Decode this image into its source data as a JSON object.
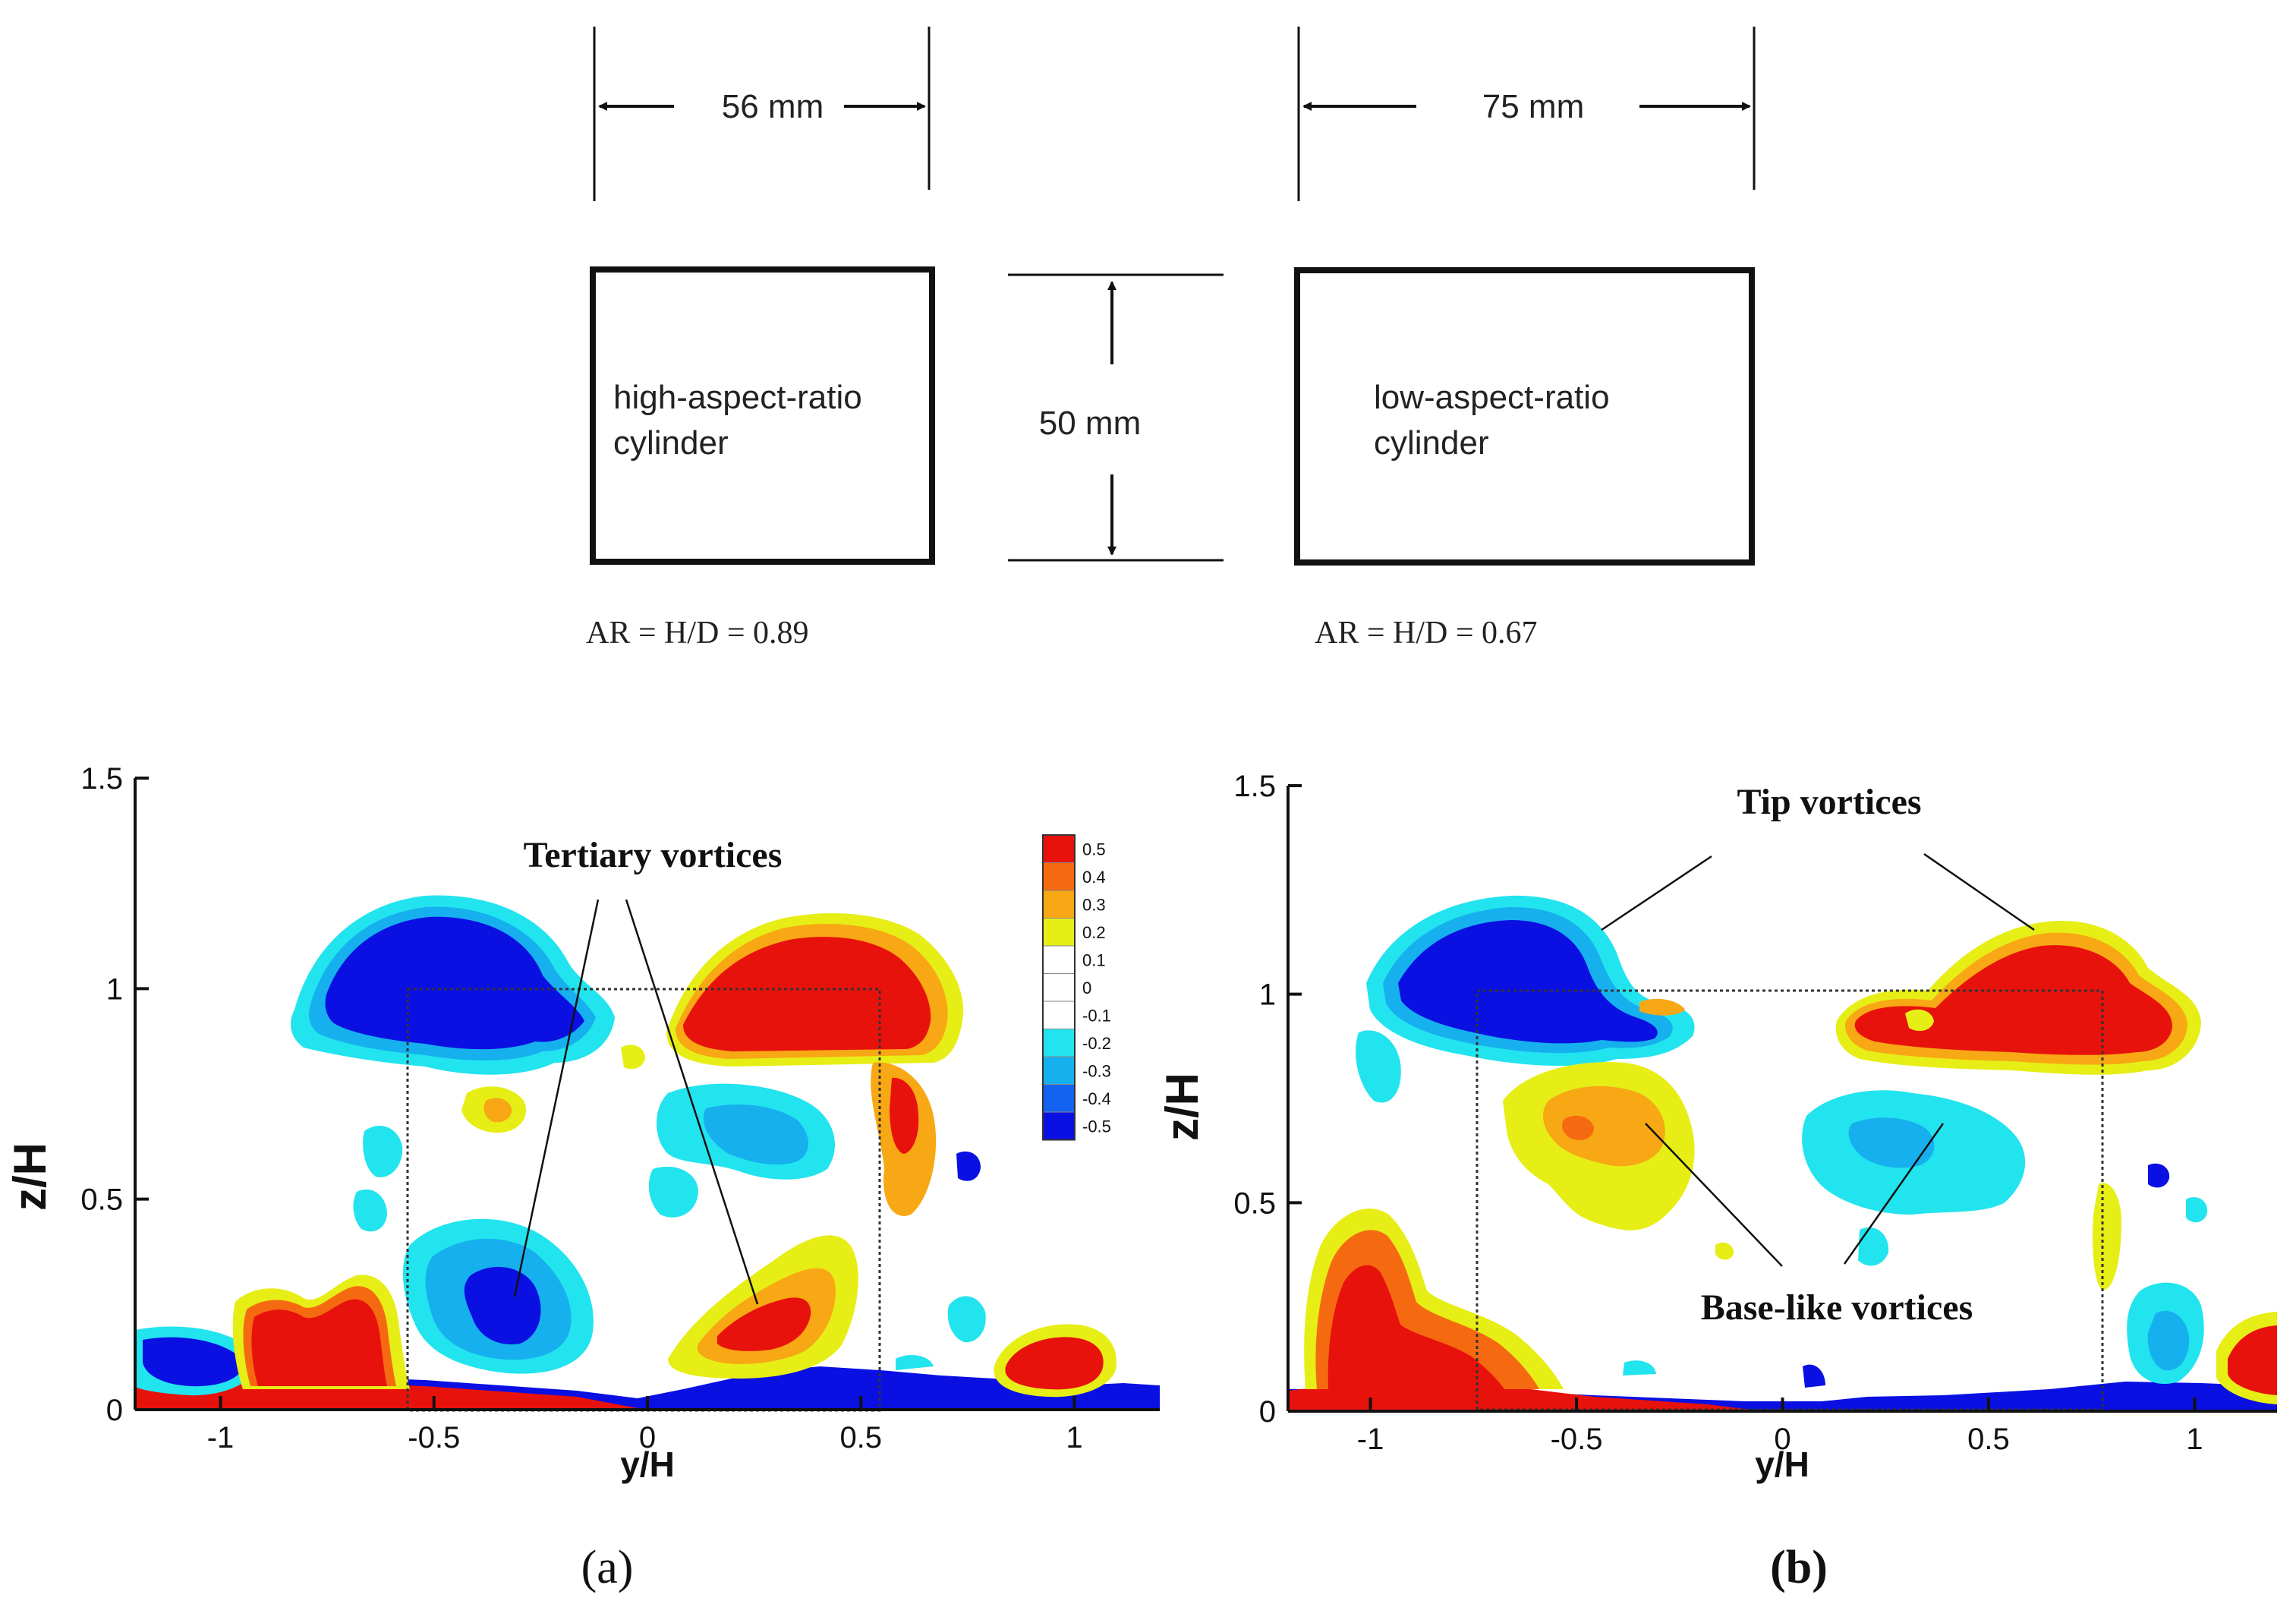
{
  "schematic": {
    "high": {
      "width_label": "56 mm",
      "name_line1": "high-aspect-ratio",
      "name_line2": "cylinder",
      "ar_label": "AR = H/D = 0.89"
    },
    "low": {
      "width_label": "75 mm",
      "name_line1": "low-aspect-ratio",
      "name_line2": "cylinder",
      "ar_label": "AR = H/D = 0.67"
    },
    "height_label": "50 mm"
  },
  "colorbar": {
    "levels": [
      {
        "value": "0.5",
        "color": "#e8120c"
      },
      {
        "value": "0.4",
        "color": "#f56a10"
      },
      {
        "value": "0.3",
        "color": "#f7a814"
      },
      {
        "value": "0.2",
        "color": "#e6ee16"
      },
      {
        "value": "0.1",
        "color": "#ffffff"
      },
      {
        "value": "0",
        "color": "#ffffff"
      },
      {
        "value": "-0.1",
        "color": "#ffffff"
      },
      {
        "value": "-0.2",
        "color": "#22e4ee"
      },
      {
        "value": "-0.3",
        "color": "#16b0ee"
      },
      {
        "value": "-0.4",
        "color": "#1462f0"
      },
      {
        "value": "-0.5",
        "color": "#0a10e2"
      }
    ]
  },
  "chart_data": [
    {
      "panel_label": "(a)",
      "type": "contour",
      "xlabel": "y/H",
      "ylabel": "z/H",
      "xlim": [
        -1.2,
        1.2
      ],
      "ylim": [
        0,
        1.5
      ],
      "x_ticks": [
        "-1",
        "-0.5",
        "0",
        "0.5",
        "1"
      ],
      "y_ticks": [
        "0",
        "0.5",
        "1",
        "1.5"
      ],
      "cylinder_outline": {
        "y_min": -0.56,
        "y_max": 0.56,
        "z_max": 1.0
      },
      "annotations": [
        "Tertiary vortices"
      ]
    },
    {
      "panel_label": "(b)",
      "type": "contour",
      "xlabel": "y/H",
      "ylabel": "z/H",
      "xlim": [
        -1.2,
        1.2
      ],
      "ylim": [
        0,
        1.5
      ],
      "x_ticks": [
        "-1",
        "-0.5",
        "0",
        "0.5",
        "1"
      ],
      "y_ticks": [
        "0",
        "0.5",
        "1",
        "1.5"
      ],
      "cylinder_outline": {
        "y_min": -0.75,
        "y_max": 0.75,
        "z_max": 1.0
      },
      "annotations": [
        "Tip vortices",
        "Base-like vortices"
      ]
    }
  ],
  "colors": {
    "pos_strong": "#e8120c",
    "pos_mid": "#f7a814",
    "pos_weak": "#e6ee16",
    "neg_weak": "#22e4ee",
    "neg_mid": "#16b0ee",
    "neg_strong": "#0a10e2"
  }
}
